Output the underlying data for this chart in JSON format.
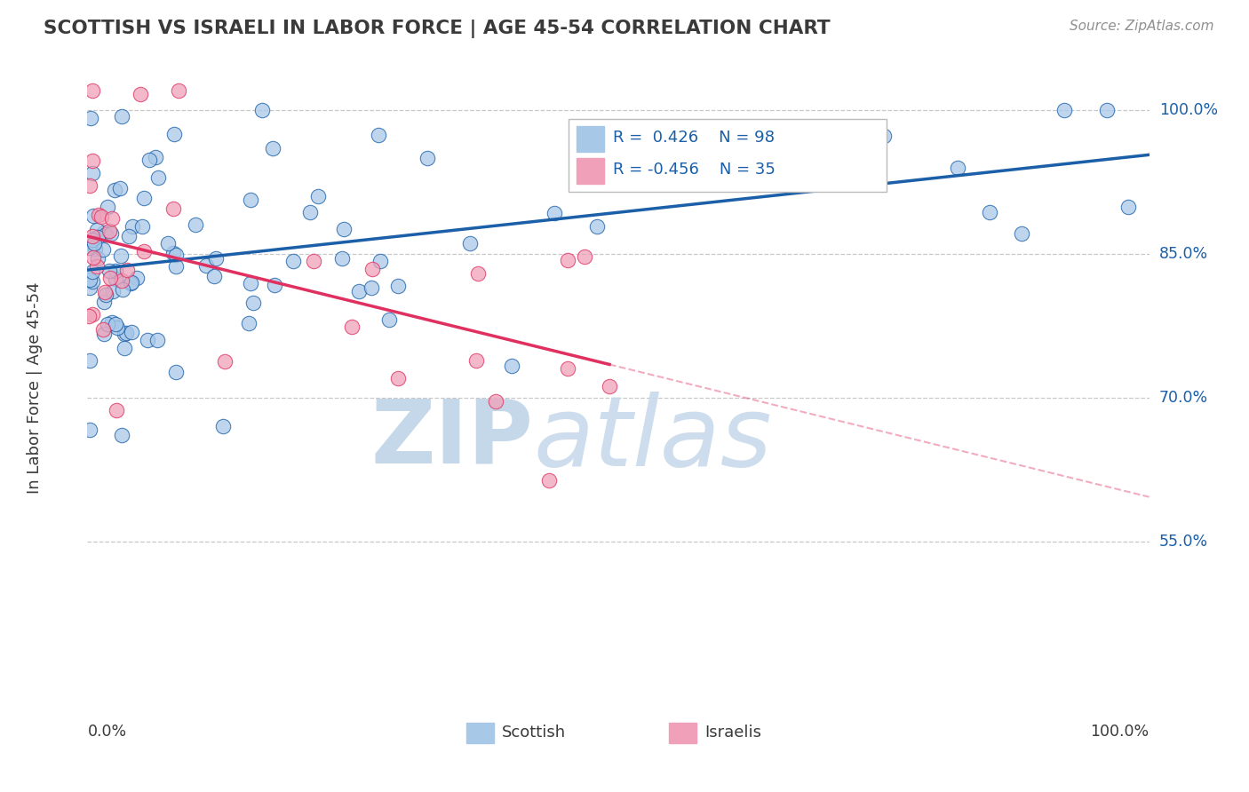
{
  "title": "SCOTTISH VS ISRAELI IN LABOR FORCE | AGE 45-54 CORRELATION CHART",
  "source_text": "Source: ZipAtlas.com",
  "ylabel": "In Labor Force | Age 45-54",
  "ytick_labels": [
    "100.0%",
    "85.0%",
    "70.0%",
    "55.0%"
  ],
  "ytick_values": [
    1.0,
    0.85,
    0.7,
    0.55
  ],
  "xlim": [
    0.0,
    1.0
  ],
  "ylim": [
    0.38,
    1.04
  ],
  "r_scottish": "0.426",
  "n_scottish": "98",
  "r_israeli": "-0.456",
  "n_israeli": "35",
  "scottish_dot_color": "#a8c8e8",
  "scottish_edge_color": "#1a5fa8",
  "israeli_dot_color": "#f0a0b8",
  "israeli_edge_color": "#e03060",
  "scottish_line_color": "#1a5fa8",
  "israeli_line_color": "#e03060",
  "background_color": "#ffffff",
  "grid_color": "#c8c8c8",
  "watermark_text": "ZIPatlas",
  "watermark_color": "#c5d8ea",
  "title_color": "#3a3a3a",
  "axis_label_color": "#1a5fa8",
  "bottom_label_color": "#3a3a3a",
  "legend_text_color": "#1a5fa8",
  "source_color": "#909090"
}
